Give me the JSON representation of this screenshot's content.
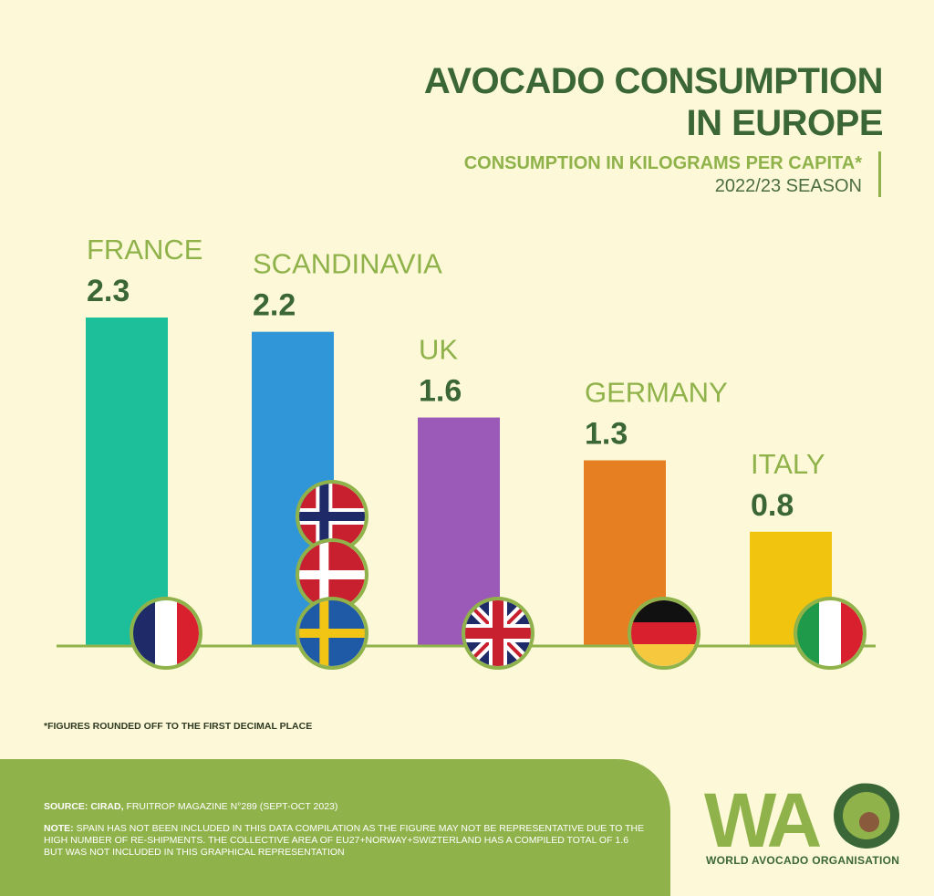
{
  "title": {
    "line1": "AVOCADO CONSUMPTION",
    "line2": "IN EUROPE"
  },
  "subtitle": "CONSUMPTION IN KILOGRAMS PER CAPITA*",
  "season": "2022/23 SEASON",
  "chart_data": {
    "type": "bar",
    "title": "AVOCADO CONSUMPTION IN EUROPE",
    "ylabel": "Consumption in kilograms per capita",
    "categories": [
      "FRANCE",
      "SCANDINAVIA",
      "UK",
      "GERMANY",
      "ITALY"
    ],
    "values": [
      2.3,
      2.2,
      1.6,
      1.3,
      0.8
    ],
    "value_labels": [
      "2.3",
      "2.2",
      "1.6",
      "1.3",
      "0.8"
    ],
    "colors": [
      "#1dbf9a",
      "#3196d8",
      "#9b59b8",
      "#e67e22",
      "#f1c40f"
    ],
    "ylim": [
      0,
      2.3
    ],
    "grid": false
  },
  "footnote": "*FIGURES ROUNDED OFF TO THE FIRST DECIMAL PLACE",
  "source": {
    "label": "SOURCE: CIRAD,",
    "text": "FRUITROP MAGAZINE N°289 (SEPT-OCT 2023)"
  },
  "note": {
    "label": "NOTE:",
    "text": "SPAIN HAS NOT BEEN INCLUDED IN THIS DATA COMPILATION AS THE FIGURE MAY NOT BE REPRESENTATIVE DUE TO THE HIGH NUMBER OF RE-SHIPMENTS. THE COLLECTIVE AREA OF EU27+NORWAY+SWIZTERLAND HAS A COMPILED TOTAL OF 1.6 BUT WAS NOT INCLUDED IN THIS GRAPHICAL REPRESENTATION"
  },
  "logo": {
    "text": "WAO",
    "name": "WORLD AVOCADO ORGANISATION"
  },
  "flags": [
    "france-flag",
    "norway-flag",
    "denmark-flag",
    "sweden-flag",
    "uk-flag",
    "germany-flag",
    "italy-flag"
  ]
}
